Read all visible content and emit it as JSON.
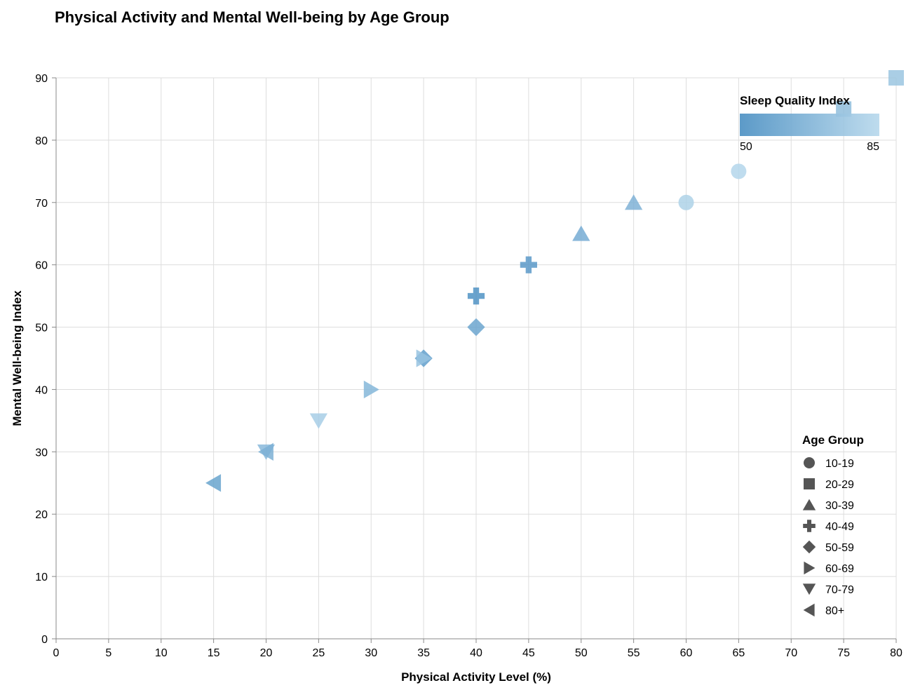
{
  "chart_data": {
    "type": "scatter",
    "title": "Physical Activity and Mental Well-being by Age Group",
    "xlabel": "Physical Activity Level (%)",
    "ylabel": "Mental Well-being Index",
    "xlim": [
      0,
      80
    ],
    "ylim": [
      0,
      90
    ],
    "x_ticks": [
      0,
      5,
      10,
      15,
      20,
      25,
      30,
      35,
      40,
      45,
      50,
      55,
      60,
      65,
      70,
      75,
      80
    ],
    "y_ticks": [
      0,
      10,
      20,
      30,
      40,
      50,
      60,
      70,
      80,
      90
    ],
    "grid": true,
    "shape_legend": {
      "title": "Age Group",
      "placement": "bottom-right",
      "entries": [
        {
          "label": "10-19",
          "shape": "circle"
        },
        {
          "label": "20-29",
          "shape": "square"
        },
        {
          "label": "30-39",
          "shape": "triangle-up"
        },
        {
          "label": "40-49",
          "shape": "cross"
        },
        {
          "label": "50-59",
          "shape": "diamond"
        },
        {
          "label": "60-69",
          "shape": "triangle-right"
        },
        {
          "label": "70-79",
          "shape": "triangle-down"
        },
        {
          "label": "80+",
          "shape": "triangle-left"
        }
      ]
    },
    "color_legend": {
      "title": "Sleep Quality Index",
      "placement": "top-right",
      "min_label": "50",
      "max_label": "85",
      "domain": [
        50,
        85
      ],
      "color_low": "#4a8fc2",
      "color_high": "#b7d8ec"
    },
    "points": [
      {
        "age_group": "10-19",
        "x": 60,
        "y": 70,
        "sleep": 82
      },
      {
        "age_group": "10-19",
        "x": 65,
        "y": 75,
        "sleep": 84
      },
      {
        "age_group": "20-29",
        "x": 75,
        "y": 85,
        "sleep": 72
      },
      {
        "age_group": "20-29",
        "x": 80,
        "y": 90,
        "sleep": 76
      },
      {
        "age_group": "30-39",
        "x": 50,
        "y": 65,
        "sleep": 64
      },
      {
        "age_group": "30-39",
        "x": 55,
        "y": 70,
        "sleep": 67
      },
      {
        "age_group": "40-49",
        "x": 40,
        "y": 55,
        "sleep": 52
      },
      {
        "age_group": "40-49",
        "x": 45,
        "y": 60,
        "sleep": 55
      },
      {
        "age_group": "50-59",
        "x": 35,
        "y": 45,
        "sleep": 58
      },
      {
        "age_group": "50-59",
        "x": 40,
        "y": 50,
        "sleep": 61
      },
      {
        "age_group": "60-69",
        "x": 30,
        "y": 40,
        "sleep": 69
      },
      {
        "age_group": "60-69",
        "x": 35,
        "y": 45,
        "sleep": 75
      },
      {
        "age_group": "70-79",
        "x": 20,
        "y": 30,
        "sleep": 70
      },
      {
        "age_group": "70-79",
        "x": 25,
        "y": 35,
        "sleep": 80
      },
      {
        "age_group": "80+",
        "x": 15,
        "y": 25,
        "sleep": 60
      },
      {
        "age_group": "80+",
        "x": 20,
        "y": 30,
        "sleep": 66
      }
    ]
  }
}
